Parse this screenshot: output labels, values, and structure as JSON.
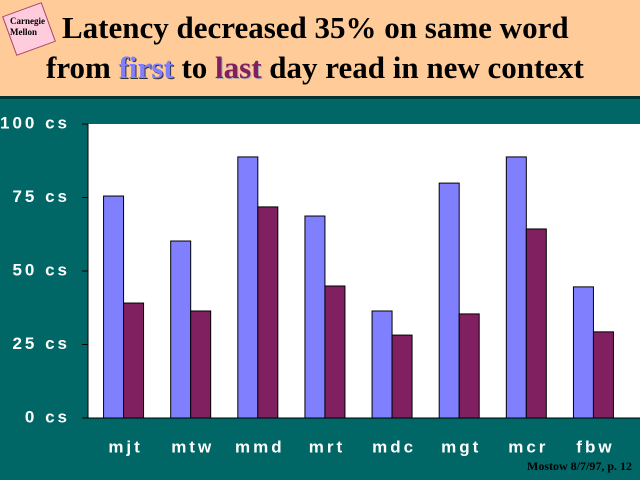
{
  "logo": "Carnegie Mellon",
  "footer": "Mostow 8/7/97, p. 12",
  "chart_data": {
    "type": "bar",
    "title_line1": "Latency decreased 35% on same word",
    "title_from": "from",
    "title_to": "to",
    "title_rest": "day read in new context",
    "categories": [
      "mjt",
      "mtw",
      "mmd",
      "mrt",
      "mdc",
      "mgt",
      "mcr",
      "fbw"
    ],
    "series": [
      {
        "name": "first",
        "color": "#8080ff",
        "values": [
          75.5,
          60.2,
          88.8,
          68.7,
          36.4,
          79.9,
          88.8,
          44.6
        ]
      },
      {
        "name": "last",
        "color": "#802060",
        "values": [
          39.1,
          36.4,
          71.8,
          44.9,
          28.2,
          35.4,
          64.3,
          29.3
        ]
      }
    ],
    "ylim": [
      0,
      100
    ],
    "yticks": [
      {
        "value": 0,
        "label": "0 cs"
      },
      {
        "value": 25,
        "label": "25 cs"
      },
      {
        "value": 50,
        "label": "50 cs"
      },
      {
        "value": 75,
        "label": "75 cs"
      },
      {
        "value": 100,
        "label": "100 cs"
      }
    ],
    "grid": false
  }
}
